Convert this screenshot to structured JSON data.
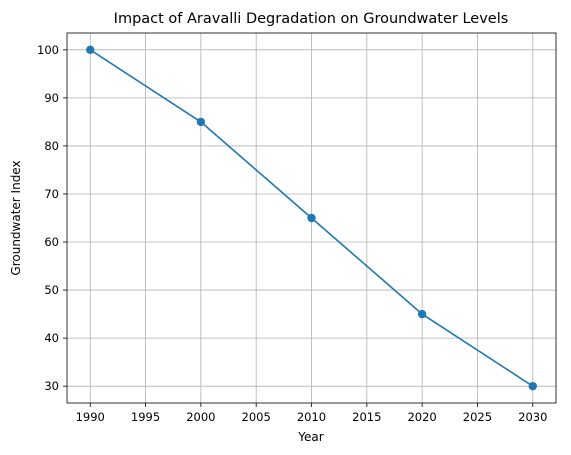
{
  "chart_data": {
    "type": "line",
    "title": "Impact of Aravalli Degradation on Groundwater Levels",
    "xlabel": "Year",
    "ylabel": "Groundwater Index",
    "xlim": [
      1987.9,
      2032.1
    ],
    "ylim": [
      26.5,
      103.5
    ],
    "x_ticks": [
      1990,
      1995,
      2000,
      2005,
      2010,
      2015,
      2020,
      2025,
      2030
    ],
    "y_ticks": [
      30,
      40,
      50,
      60,
      70,
      80,
      90,
      100
    ],
    "grid": true,
    "legend": "none",
    "series": [
      {
        "color": "#1f77b4",
        "marker": "circle",
        "x": [
          1990,
          2000,
          2010,
          2020,
          2030
        ],
        "y": [
          100,
          85,
          65,
          45,
          30
        ]
      }
    ]
  }
}
